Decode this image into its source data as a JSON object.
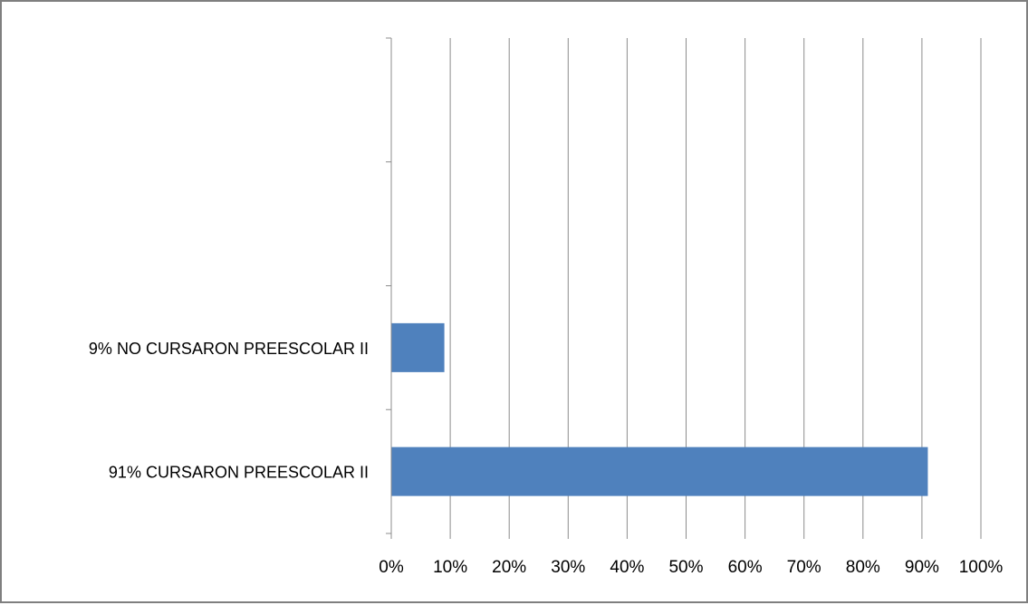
{
  "chart_data": {
    "type": "bar",
    "orientation": "horizontal",
    "categories": [
      "9% NO CURSARON PREESCOLAR II",
      "91% CURSARON PREESCOLAR II"
    ],
    "values": [
      0.09,
      0.91
    ],
    "extra_empty_slots_top": 2,
    "xlim": [
      0,
      1
    ],
    "xticks": [
      0,
      0.1,
      0.2,
      0.3,
      0.4,
      0.5,
      0.6,
      0.7,
      0.8,
      0.9,
      1.0
    ],
    "xtick_labels": [
      "0%",
      "10%",
      "20%",
      "30%",
      "40%",
      "50%",
      "60%",
      "70%",
      "80%",
      "90%",
      "100%"
    ],
    "grid": "vertical",
    "legend": "none",
    "bar_color": "#4f81bd",
    "grid_color": "#8c8c8c",
    "title": "",
    "xlabel": "",
    "ylabel": ""
  }
}
